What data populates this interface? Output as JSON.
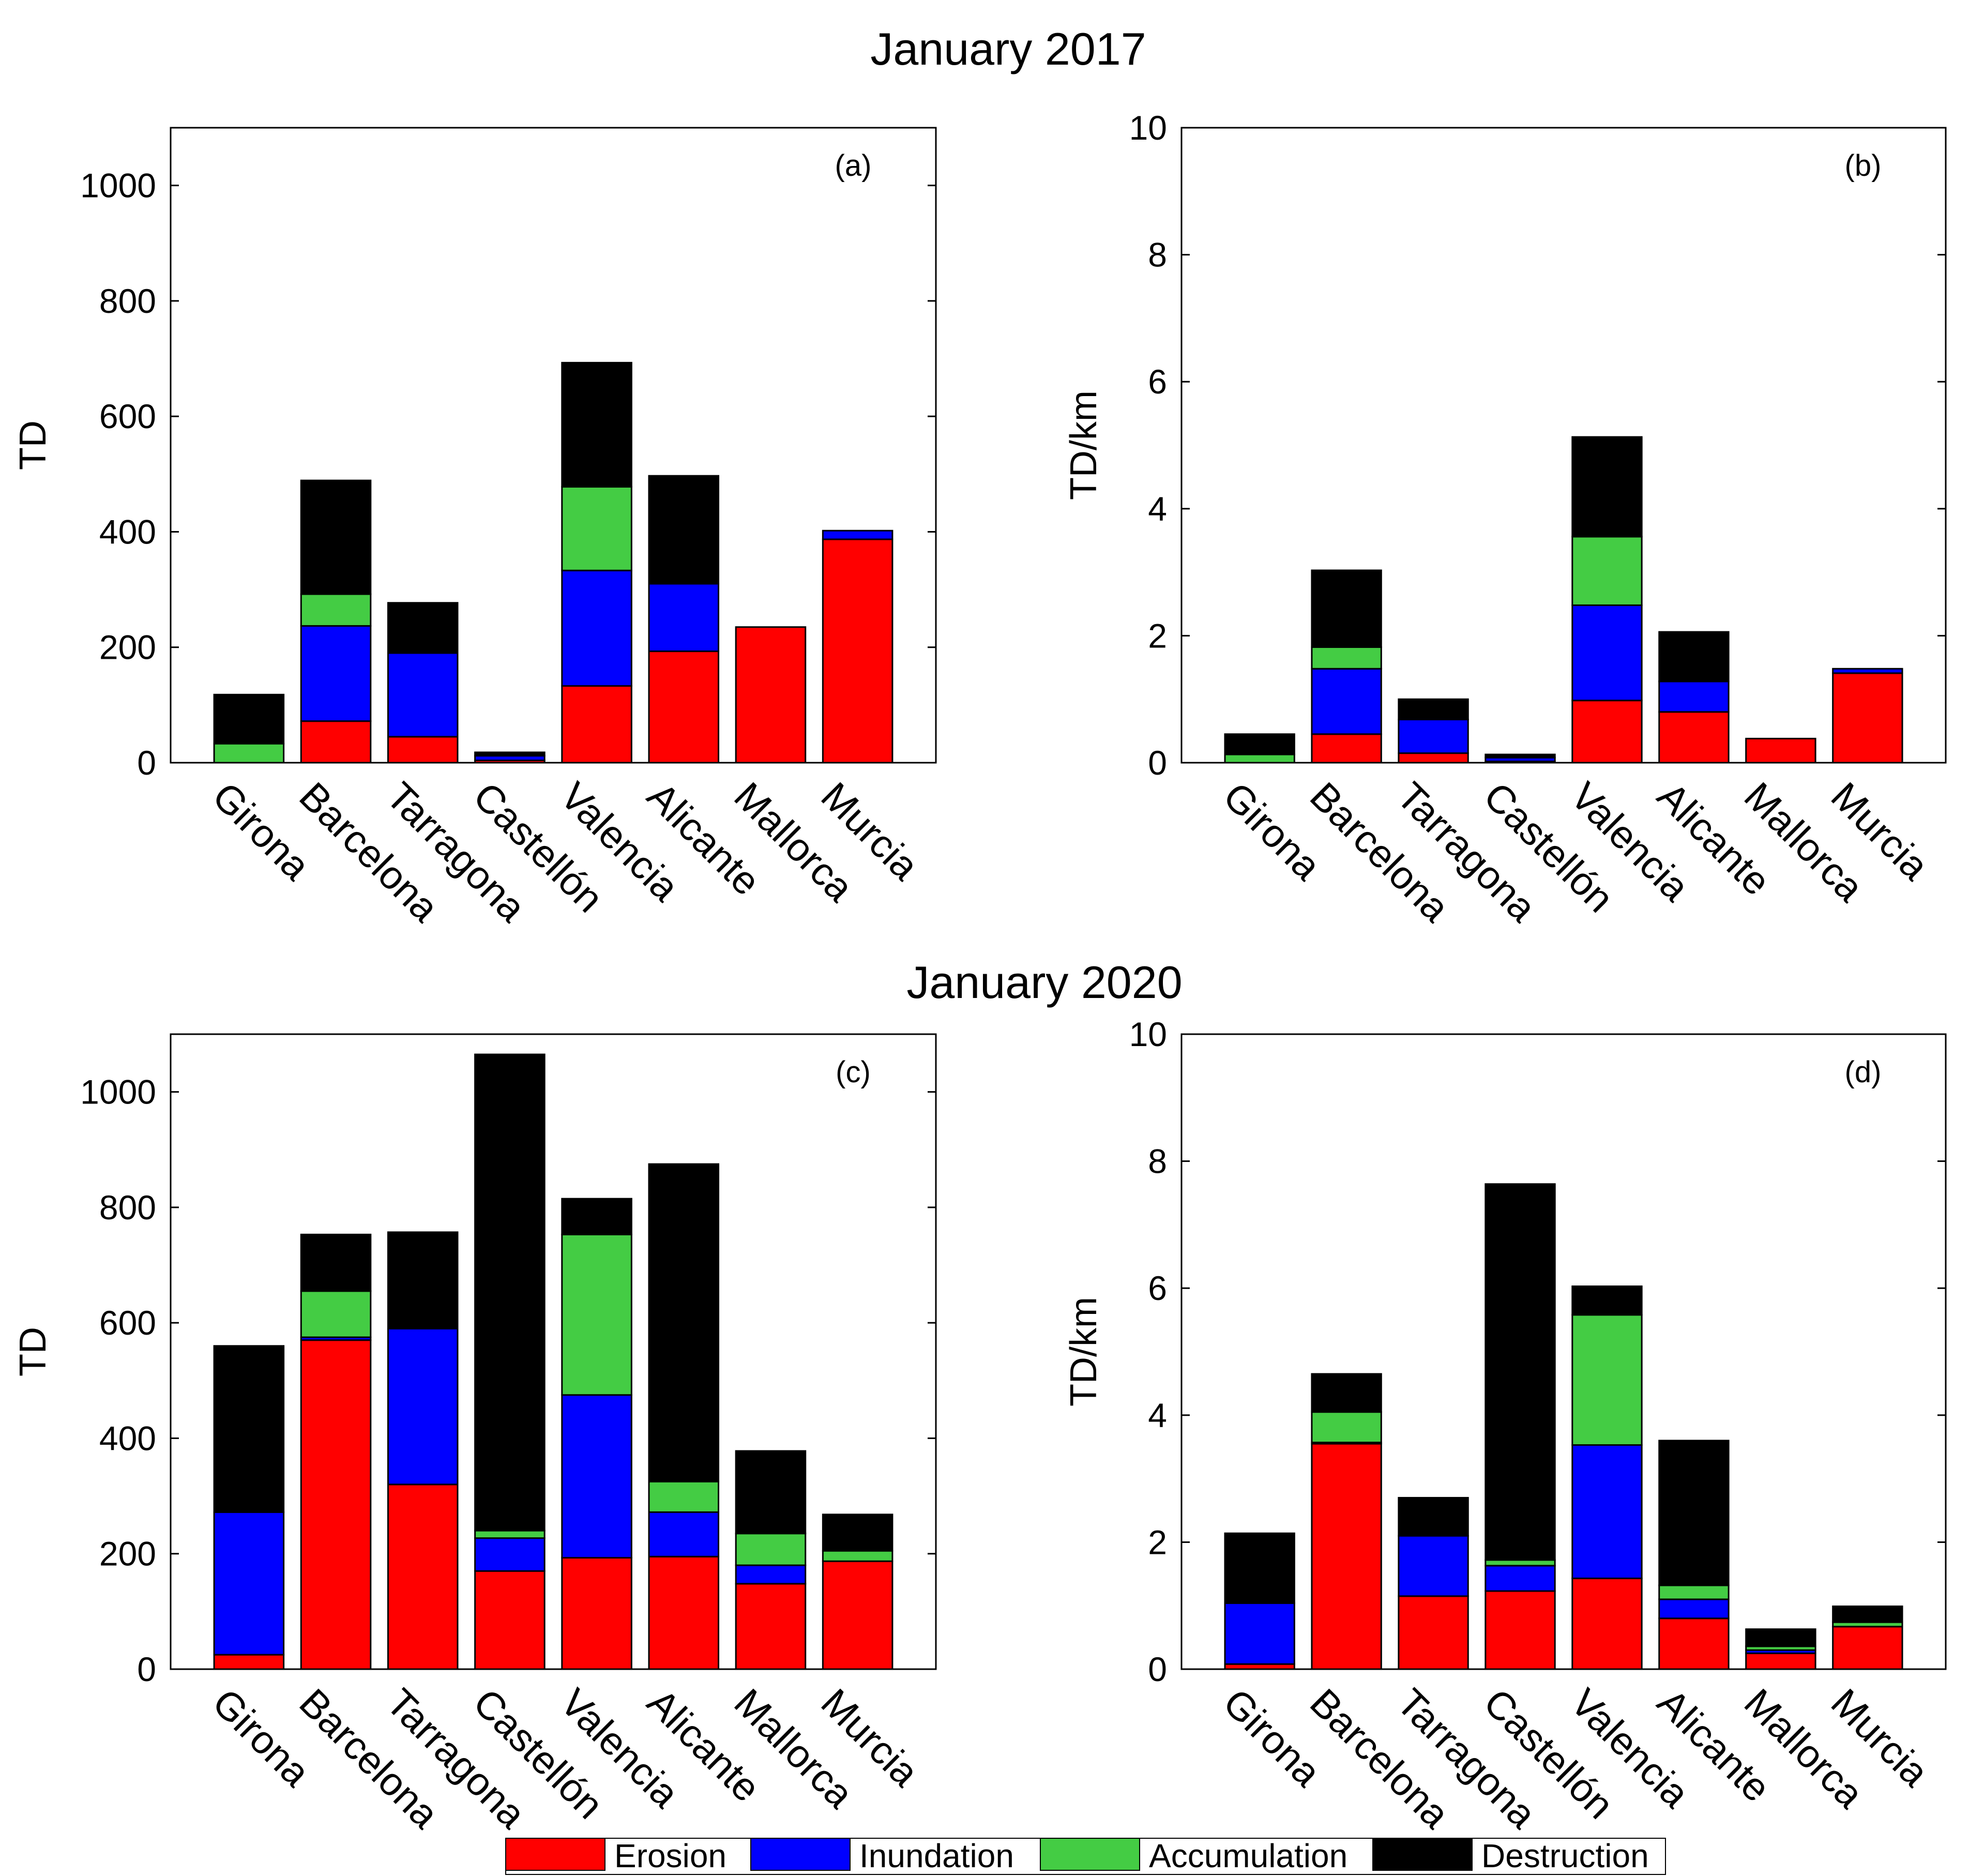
{
  "figure": {
    "group_titles": [
      "January 2017",
      "January 2020"
    ]
  },
  "chart_data": [
    {
      "type": "bar",
      "stacked": true,
      "panel": "(a)",
      "title": "January 2017",
      "xlabel": "",
      "ylabel": "TD",
      "ylim": [
        0,
        1100
      ],
      "yticks": [
        0,
        200,
        400,
        600,
        800,
        1000
      ],
      "categories": [
        "Girona",
        "Barcelona",
        "Tarragona",
        "Castellón",
        "Valencia",
        "Alicante",
        "Mallorca",
        "Murcia"
      ],
      "series": [
        {
          "name": "Erosion",
          "color": "#ff0000",
          "values": [
            0,
            72,
            45,
            4,
            133,
            193,
            235,
            387
          ]
        },
        {
          "name": "Inundation",
          "color": "#0000ff",
          "values": [
            0,
            165,
            145,
            8,
            200,
            117,
            0,
            15
          ]
        },
        {
          "name": "Accumulation",
          "color": "#44cc44",
          "values": [
            33,
            55,
            0,
            0,
            145,
            0,
            0,
            0
          ]
        },
        {
          "name": "Destruction",
          "color": "#000000",
          "values": [
            85,
            197,
            87,
            6,
            215,
            187,
            0,
            0
          ]
        }
      ]
    },
    {
      "type": "bar",
      "stacked": true,
      "panel": "(b)",
      "title": "January 2017",
      "xlabel": "",
      "ylabel": "TD/km",
      "ylim": [
        0,
        10
      ],
      "yticks": [
        0,
        2,
        4,
        6,
        8,
        10
      ],
      "categories": [
        "Girona",
        "Barcelona",
        "Tarragona",
        "Castellón",
        "Valencia",
        "Alicante",
        "Mallorca",
        "Murcia"
      ],
      "series": [
        {
          "name": "Erosion",
          "color": "#ff0000",
          "values": [
            0,
            0.45,
            0.15,
            0.02,
            0.98,
            0.8,
            0.38,
            1.41
          ]
        },
        {
          "name": "Inundation",
          "color": "#0000ff",
          "values": [
            0,
            1.03,
            0.53,
            0.06,
            1.5,
            0.48,
            0,
            0.07
          ]
        },
        {
          "name": "Accumulation",
          "color": "#44cc44",
          "values": [
            0.13,
            0.34,
            0,
            0,
            1.08,
            0,
            0,
            0
          ]
        },
        {
          "name": "Destruction",
          "color": "#000000",
          "values": [
            0.32,
            1.21,
            0.32,
            0.05,
            1.57,
            0.78,
            0,
            0
          ]
        }
      ]
    },
    {
      "type": "bar",
      "stacked": true,
      "panel": "(c)",
      "title": "January 2020",
      "xlabel": "",
      "ylabel": "TD",
      "ylim": [
        0,
        1100
      ],
      "yticks": [
        0,
        200,
        400,
        600,
        800,
        1000
      ],
      "categories": [
        "Girona",
        "Barcelona",
        "Tarragona",
        "Castellón",
        "Valencia",
        "Alicante",
        "Mallorca",
        "Murcia"
      ],
      "series": [
        {
          "name": "Erosion",
          "color": "#ff0000",
          "values": [
            25,
            570,
            320,
            170,
            193,
            195,
            148,
            187
          ]
        },
        {
          "name": "Inundation",
          "color": "#0000ff",
          "values": [
            247,
            5,
            270,
            57,
            282,
            77,
            32,
            0
          ]
        },
        {
          "name": "Accumulation",
          "color": "#44cc44",
          "values": [
            0,
            80,
            0,
            13,
            278,
            53,
            55,
            18
          ]
        },
        {
          "name": "Destruction",
          "color": "#000000",
          "values": [
            288,
            98,
            167,
            825,
            62,
            550,
            143,
            63
          ]
        }
      ]
    },
    {
      "type": "bar",
      "stacked": true,
      "panel": "(d)",
      "title": "January 2020",
      "xlabel": "",
      "ylabel": "TD/km",
      "ylim": [
        0,
        10
      ],
      "yticks": [
        0,
        2,
        4,
        6,
        8,
        10
      ],
      "categories": [
        "Girona",
        "Barcelona",
        "Tarragona",
        "Castellón",
        "Valencia",
        "Alicante",
        "Mallorca",
        "Murcia"
      ],
      "series": [
        {
          "name": "Erosion",
          "color": "#ff0000",
          "values": [
            0.08,
            3.55,
            1.15,
            1.23,
            1.43,
            0.8,
            0.25,
            0.67
          ]
        },
        {
          "name": "Inundation",
          "color": "#0000ff",
          "values": [
            0.96,
            0.02,
            0.95,
            0.4,
            2.1,
            0.3,
            0.05,
            0
          ]
        },
        {
          "name": "Accumulation",
          "color": "#44cc44",
          "values": [
            0,
            0.48,
            0,
            0.09,
            2.05,
            0.22,
            0.06,
            0.07
          ]
        },
        {
          "name": "Destruction",
          "color": "#000000",
          "values": [
            1.1,
            0.6,
            0.6,
            5.92,
            0.45,
            2.28,
            0.27,
            0.25
          ]
        }
      ]
    }
  ],
  "legend": {
    "position": "bottom-center",
    "items": [
      {
        "label": "Erosion",
        "color": "#ff0000"
      },
      {
        "label": "Inundation",
        "color": "#0000ff"
      },
      {
        "label": "Accumulation",
        "color": "#44cc44"
      },
      {
        "label": "Destruction",
        "color": "#000000"
      }
    ]
  }
}
